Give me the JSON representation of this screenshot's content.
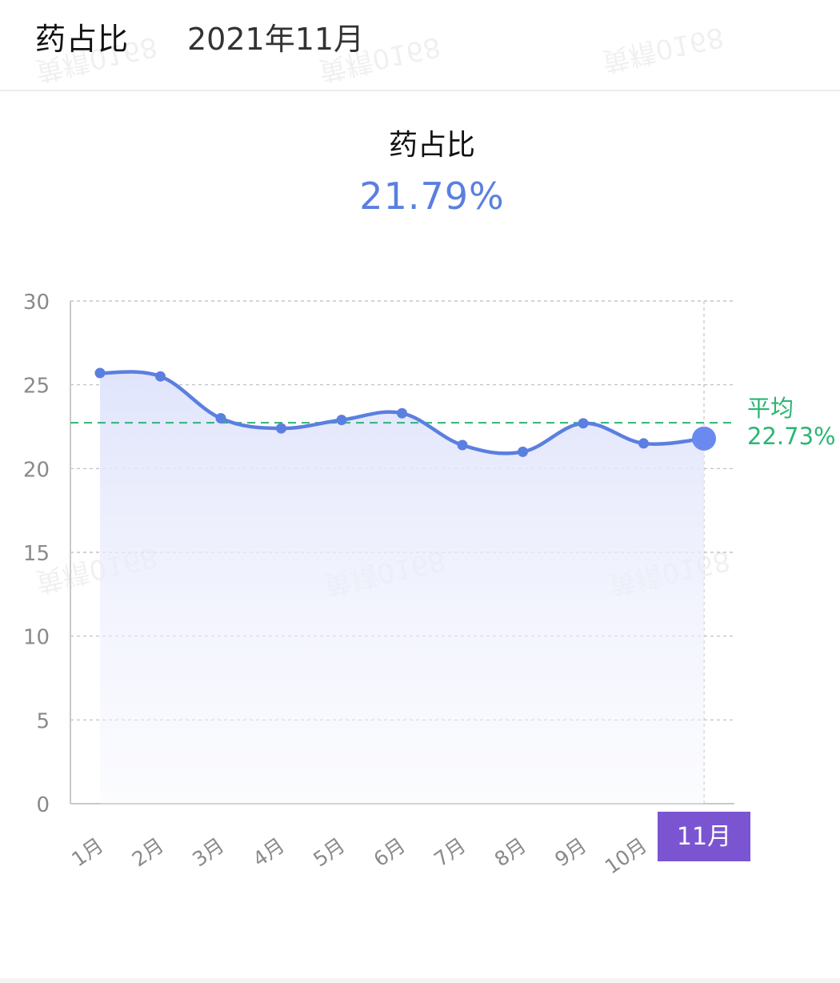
{
  "header": {
    "title": "药占比",
    "period": "2021年11月"
  },
  "summary": {
    "title": "药占比",
    "value": "21.79%"
  },
  "chart_data": {
    "type": "line",
    "categories": [
      "1月",
      "2月",
      "3月",
      "4月",
      "5月",
      "6月",
      "7月",
      "8月",
      "9月",
      "10月",
      "11月"
    ],
    "series": [
      {
        "values": [
          25.7,
          25.5,
          23.0,
          22.4,
          22.9,
          23.3,
          21.4,
          21.0,
          22.7,
          21.5,
          21.79
        ],
        "color": "#5b7fe0"
      }
    ],
    "ylim": [
      0,
      30
    ],
    "yticks": [
      0,
      5,
      10,
      15,
      20,
      25,
      30
    ],
    "grid": true,
    "smooth": true,
    "area_fill": true,
    "highlight_index": 10,
    "highlight_color": "#7b55d1",
    "average": {
      "label": "平均",
      "value_label": "22.73%",
      "value": 22.73,
      "color": "#2bb673"
    }
  }
}
